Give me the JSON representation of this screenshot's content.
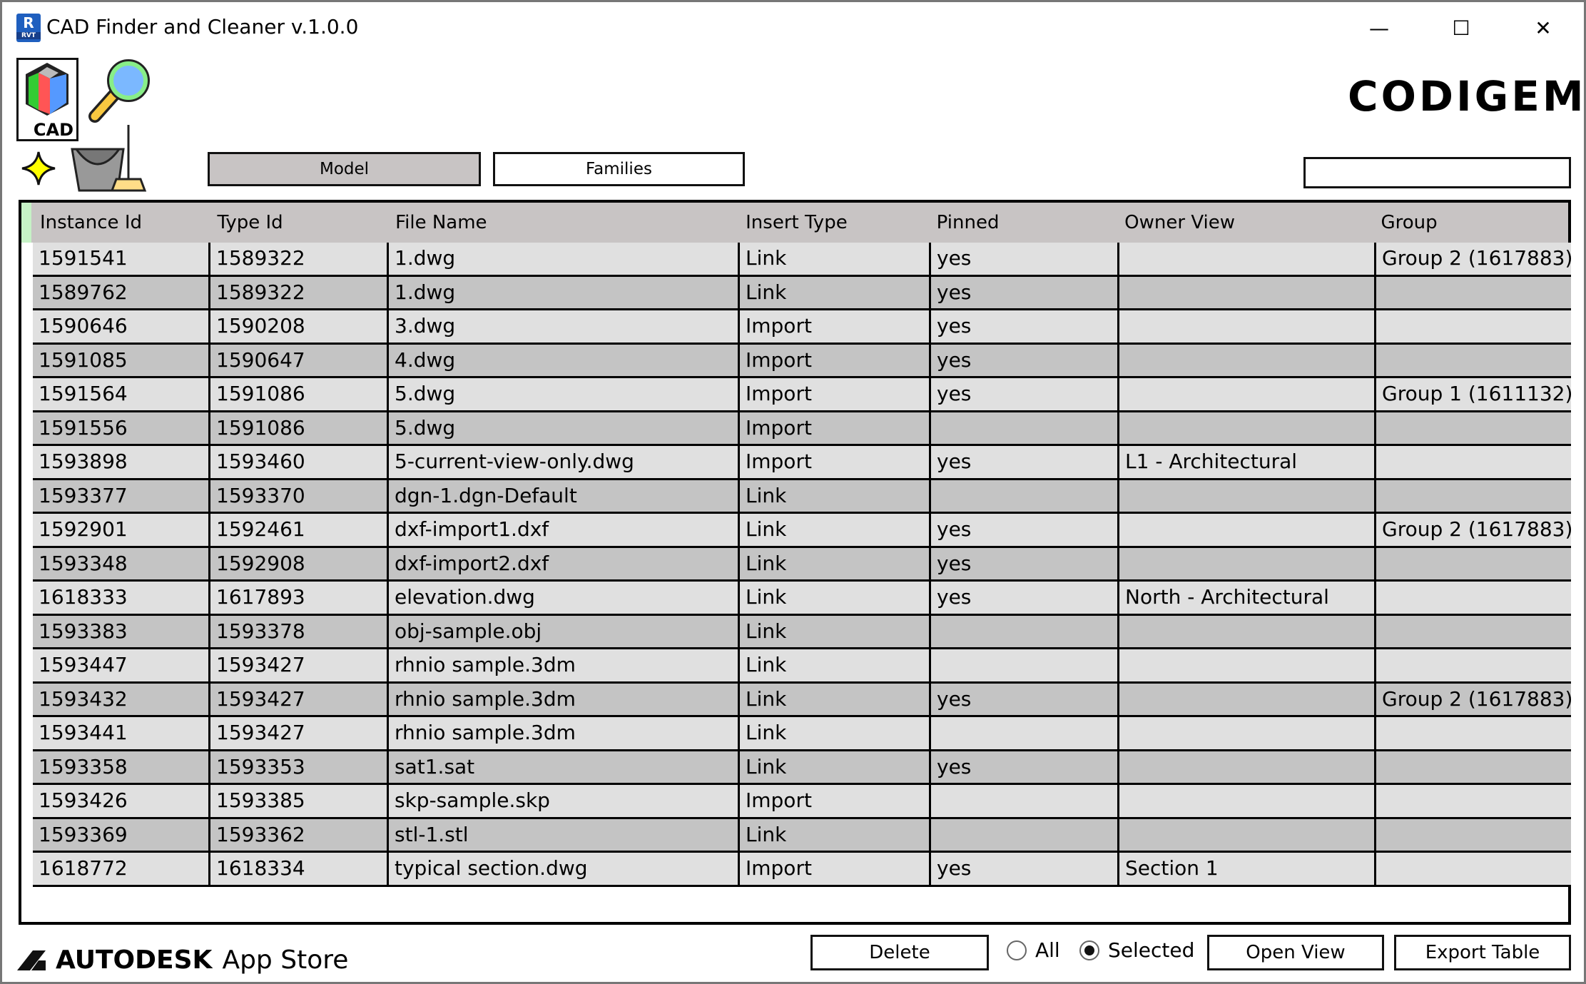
{
  "window": {
    "title": "CAD Finder and Cleaner  v.1.0.0",
    "app_icon": "R",
    "app_icon_sub": "RVT"
  },
  "logo": {
    "brand": "CODIGEM",
    "cad_label": "CAD"
  },
  "tabs": [
    {
      "label": "Model",
      "active": true
    },
    {
      "label": "Families",
      "active": false
    }
  ],
  "search": {
    "value": "",
    "placeholder": ""
  },
  "colors": {
    "header": "#c8c4c4",
    "row_light": "#e0e0e0",
    "row_dark": "#c4c4c4",
    "row_header_strip": "#c6f2c6"
  },
  "table": {
    "columns": [
      "Instance Id",
      "Type Id",
      "File Name",
      "Insert Type",
      "Pinned",
      "Owner View",
      "Group"
    ],
    "rows": [
      [
        "1591541",
        "1589322",
        "1.dwg",
        "Link",
        "yes",
        "",
        "Group 2 (1617883)"
      ],
      [
        "1589762",
        "1589322",
        "1.dwg",
        "Link",
        "yes",
        "",
        ""
      ],
      [
        "1590646",
        "1590208",
        "3.dwg",
        "Import",
        "yes",
        "",
        ""
      ],
      [
        "1591085",
        "1590647",
        "4.dwg",
        "Import",
        "yes",
        "",
        ""
      ],
      [
        "1591564",
        "1591086",
        "5.dwg",
        "Import",
        "yes",
        "",
        "Group 1 (1611132)"
      ],
      [
        "1591556",
        "1591086",
        "5.dwg",
        "Import",
        "",
        "",
        ""
      ],
      [
        "1593898",
        "1593460",
        "5-current-view-only.dwg",
        "Import",
        "yes",
        "L1 - Architectural",
        ""
      ],
      [
        "1593377",
        "1593370",
        "dgn-1.dgn-Default",
        "Link",
        "",
        "",
        ""
      ],
      [
        "1592901",
        "1592461",
        "dxf-import1.dxf",
        "Link",
        "yes",
        "",
        "Group 2 (1617883)"
      ],
      [
        "1593348",
        "1592908",
        "dxf-import2.dxf",
        "Link",
        "yes",
        "",
        ""
      ],
      [
        "1618333",
        "1617893",
        "elevation.dwg",
        "Link",
        "yes",
        "North - Architectural",
        ""
      ],
      [
        "1593383",
        "1593378",
        "obj-sample.obj",
        "Link",
        "",
        "",
        ""
      ],
      [
        "1593447",
        "1593427",
        "rhnio sample.3dm",
        "Link",
        "",
        "",
        ""
      ],
      [
        "1593432",
        "1593427",
        "rhnio sample.3dm",
        "Link",
        "yes",
        "",
        "Group 2 (1617883)"
      ],
      [
        "1593441",
        "1593427",
        "rhnio sample.3dm",
        "Link",
        "",
        "",
        ""
      ],
      [
        "1593358",
        "1593353",
        "sat1.sat",
        "Link",
        "yes",
        "",
        ""
      ],
      [
        "1593426",
        "1593385",
        "skp-sample.skp",
        "Import",
        "",
        "",
        ""
      ],
      [
        "1593369",
        "1593362",
        "stl-1.stl",
        "Link",
        "",
        "",
        ""
      ],
      [
        "1618772",
        "1618334",
        "typical section.dwg",
        "Import",
        "yes",
        "Section 1",
        ""
      ]
    ]
  },
  "footer": {
    "autodesk": "AUTODESK",
    "appstore": "App Store",
    "delete": "Delete",
    "radio_all": "All",
    "radio_selected": "Selected",
    "selected_option": "Selected",
    "open_view": "Open View",
    "export": "Export Table"
  }
}
